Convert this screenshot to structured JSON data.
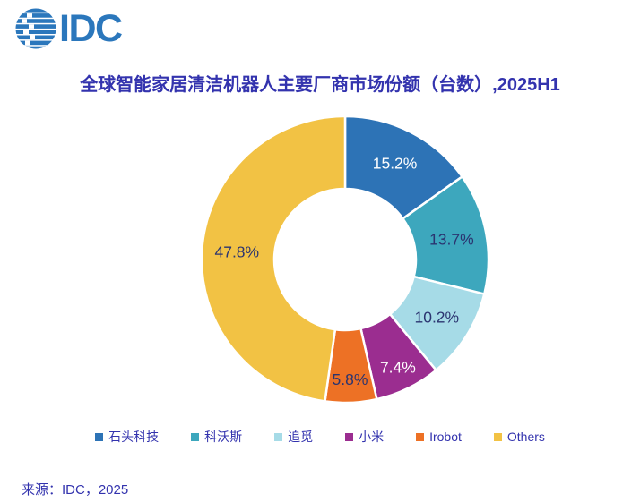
{
  "logo": {
    "text": "IDC"
  },
  "title": "全球智能家居清洁机器人主要厂商市场份额（台数）,2025H1",
  "source": {
    "text": "来源：IDC，2025"
  },
  "brand_color": "#2B77BC",
  "text_color": "#3333AE",
  "chart_data": {
    "type": "pie",
    "subtype": "donut",
    "title": "全球智能家居清洁机器人主要厂商市场份额（台数）,2025H1",
    "start_angle_deg": 0,
    "direction": "clockwise",
    "inner_radius_ratio": 0.49,
    "legend_position": "bottom",
    "categories": [
      "石头科技",
      "科沃斯",
      "追觅",
      "小米",
      "Irobot",
      "Others"
    ],
    "values": [
      15.2,
      13.7,
      10.2,
      7.4,
      5.8,
      47.8
    ],
    "data_labels": [
      "15.2%",
      "13.7%",
      "10.2%",
      "7.4%",
      "5.8%",
      "47.8%"
    ],
    "colors": [
      "#2D73B6",
      "#3DA7BD",
      "#A6DBE7",
      "#9B2D90",
      "#ED7125",
      "#F2C244"
    ],
    "data_label_colors": [
      "#FFFFFF",
      "#2B3470",
      "#2B3470",
      "#FFFFFF",
      "#2B3470",
      "#2B3470"
    ]
  }
}
